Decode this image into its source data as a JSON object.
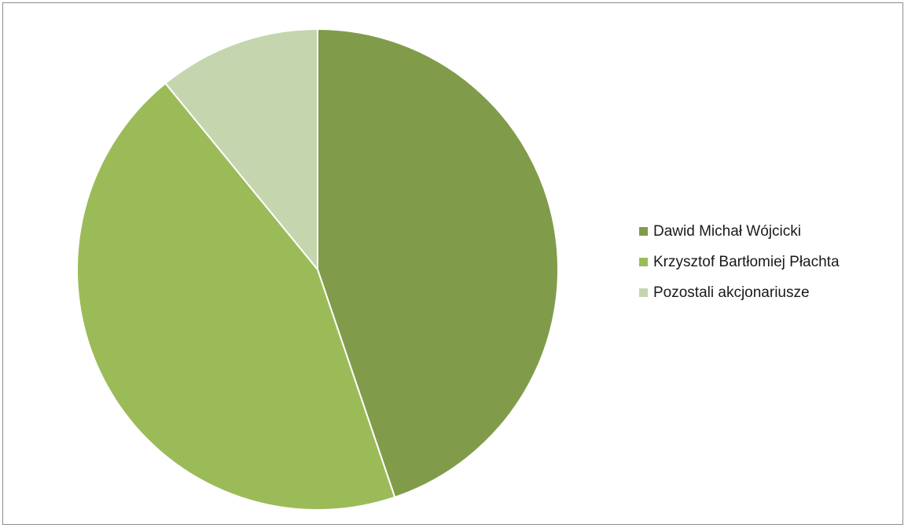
{
  "chart_data": {
    "type": "pie",
    "categories": [
      "Dawid Michał Wójcicki",
      "Krzysztof Bartłomiej Płachta",
      "Pozostali akcjonariusze"
    ],
    "values": [
      44.8,
      44.3,
      10.9
    ],
    "colors": [
      "#809c4a",
      "#9bbb59",
      "#c5d5ae"
    ],
    "start_angle_deg": 0,
    "direction": "clockwise",
    "legend_position": "right",
    "title": ""
  }
}
